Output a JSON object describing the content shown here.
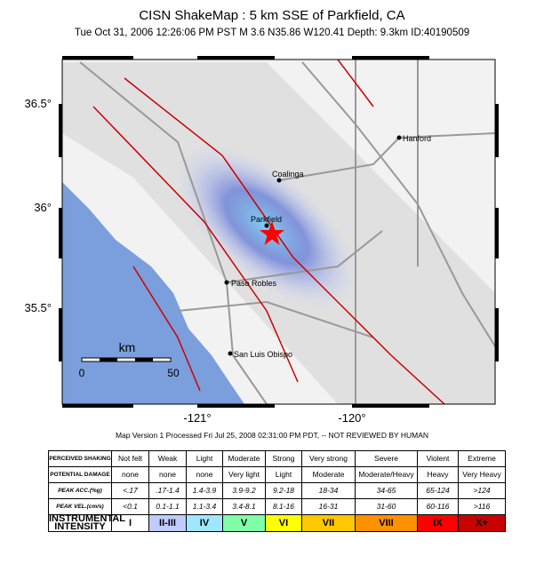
{
  "header": {
    "title": "CISN ShakeMap :   5 km SSE of Parkfield, CA",
    "subtitle": "Tue Oct 31, 2006 12:26:06 PM PST   M 3.6   N35.86 W120.41   Depth: 9.3km   ID:40190509"
  },
  "map": {
    "lat_labels": [
      "36.5°",
      "36°",
      "35.5°"
    ],
    "lon_labels": [
      "-121°",
      "-120°"
    ],
    "cities": [
      "Hanford",
      "Coalinga",
      "Parkfield",
      "Paso Robles",
      "San Luis Obispo"
    ],
    "scale": {
      "unit": "km",
      "start": "0",
      "end": "50"
    }
  },
  "version_line": "Map Version 1 Processed Fri Jul 25, 2008 02:31:00 PM PDT, -- NOT REVIEWED BY HUMAN",
  "legend": {
    "rows": [
      {
        "label": "PERCEIVED SHAKING",
        "cells": [
          "Not felt",
          "Weak",
          "Light",
          "Moderate",
          "Strong",
          "Very strong",
          "Severe",
          "Violent",
          "Extreme"
        ]
      },
      {
        "label": "POTENTIAL DAMAGE",
        "cells": [
          "none",
          "none",
          "none",
          "Very light",
          "Light",
          "Moderate",
          "Moderate/Heavy",
          "Heavy",
          "Very Heavy"
        ]
      },
      {
        "label": "PEAK ACC.(%g)",
        "cells": [
          "<.17",
          ".17-1.4",
          "1.4-3.9",
          "3.9-9.2",
          "9.2-18",
          "18-34",
          "34-65",
          "65-124",
          ">124"
        ]
      },
      {
        "label": "PEAK VEL.(cm/s)",
        "cells": [
          "<0.1",
          "0.1-1.1",
          "1.1-3.4",
          "3.4-8.1",
          "8.1-16",
          "16-31",
          "31-60",
          "60-116",
          ">116"
        ]
      },
      {
        "label": "INSTRUMENTAL INTENSITY",
        "cells": [
          "I",
          "II-III",
          "IV",
          "V",
          "VI",
          "VII",
          "VIII",
          "IX",
          "X+"
        ]
      }
    ]
  }
}
